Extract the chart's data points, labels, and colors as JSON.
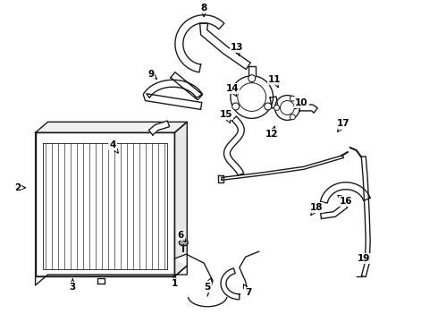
{
  "bg_color": "#ffffff",
  "lc": "#1a1a1a",
  "lw": 1.0,
  "labels": [
    [
      "1",
      195,
      305,
      195,
      318
    ],
    [
      "2",
      28,
      210,
      18,
      210
    ],
    [
      "3",
      80,
      312,
      80,
      322
    ],
    [
      "4",
      132,
      172,
      125,
      162
    ],
    [
      "5",
      238,
      308,
      232,
      322
    ],
    [
      "6",
      208,
      272,
      202,
      264
    ],
    [
      "7",
      272,
      318,
      278,
      328
    ],
    [
      "8",
      228,
      18,
      228,
      8
    ],
    [
      "9",
      178,
      90,
      168,
      82
    ],
    [
      "10",
      330,
      122,
      338,
      114
    ],
    [
      "11",
      312,
      98,
      308,
      88
    ],
    [
      "12",
      308,
      140,
      305,
      150
    ],
    [
      "13",
      268,
      62,
      265,
      52
    ],
    [
      "14",
      265,
      108,
      260,
      98
    ],
    [
      "15",
      258,
      138,
      253,
      128
    ],
    [
      "16",
      378,
      218,
      388,
      225
    ],
    [
      "17",
      378,
      148,
      385,
      138
    ],
    [
      "18",
      348,
      242,
      355,
      232
    ],
    [
      "19",
      400,
      290,
      408,
      290
    ]
  ]
}
